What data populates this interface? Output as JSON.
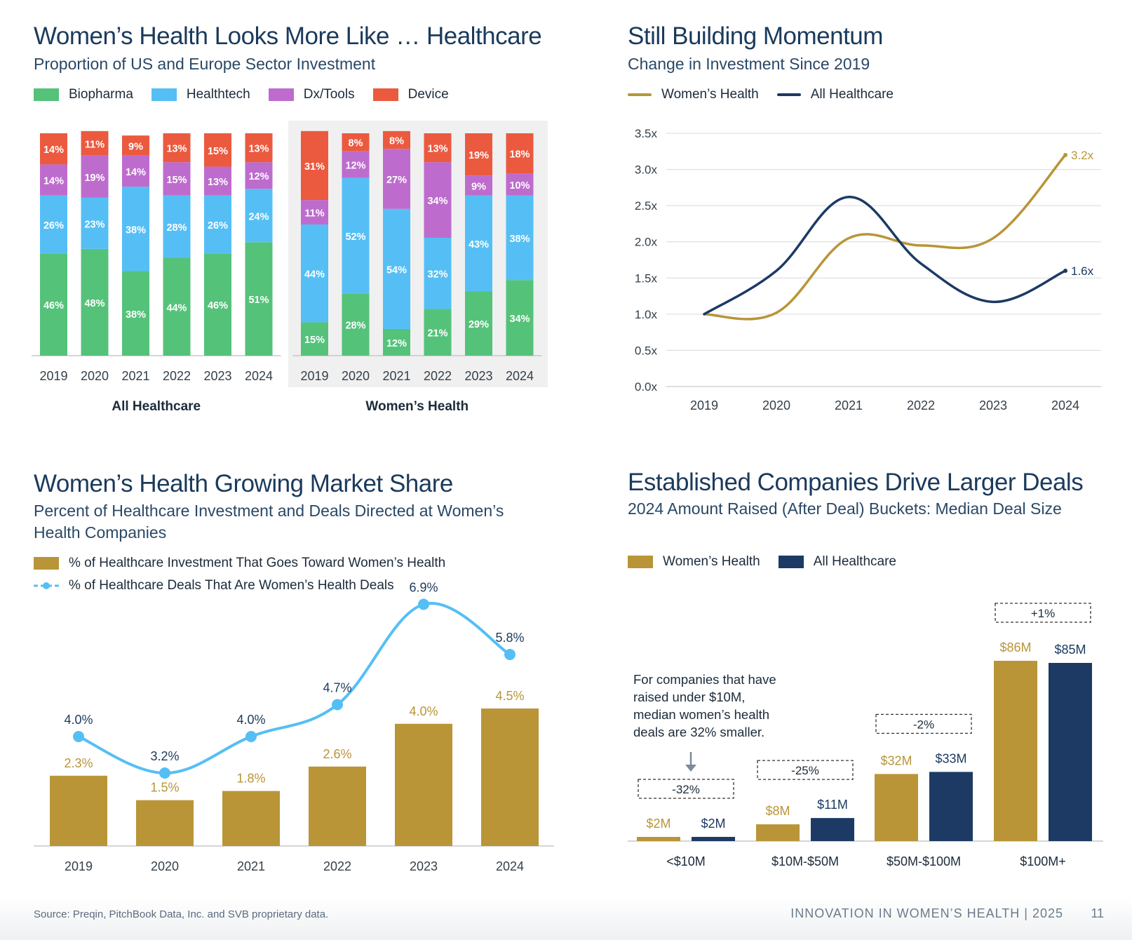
{
  "colors": {
    "biopharma": "#55c27a",
    "healthtech": "#55bff5",
    "dx_tools": "#bd6ccd",
    "device": "#eb5a3f",
    "womens_health": "#b99538",
    "all_healthcare": "#1c3a64",
    "deals_line": "#55bff5",
    "title": "#1b3a5c"
  },
  "panel1": {
    "title": "Women’s Health Looks More Like … Healthcare",
    "subtitle": "Proportion of US and Europe Sector Investment",
    "legend": [
      "Biopharma",
      "Healthtech",
      "Dx/Tools",
      "Device"
    ]
  },
  "panel2": {
    "title": "Still Building Momentum",
    "subtitle": "Change in Investment Since 2019",
    "legend": [
      "Women’s Health",
      "All Healthcare"
    ]
  },
  "panel3": {
    "title": "Women’s Health Growing Market Share",
    "subtitle_line1": "Percent of Healthcare Investment and Deals Directed at Women’s",
    "subtitle_line2": "Health Companies",
    "legend": [
      "% of Healthcare Investment That Goes Toward Women’s Health",
      "% of Healthcare Deals That Are Women’s Health Deals"
    ]
  },
  "panel4": {
    "title": "Established Companies Drive Larger Deals",
    "subtitle": "2024 Amount Raised (After Deal) Buckets: Median Deal Size",
    "legend": [
      "Women’s Health",
      "All Healthcare"
    ],
    "annotation": [
      "For companies that have",
      "raised under $10M,",
      "median women’s health",
      "deals are 32% smaller."
    ]
  },
  "footer": {
    "source": "Source: Preqin, PitchBook Data, Inc. and SVB proprietary data.",
    "report": "INNOVATION IN WOMEN’S HEALTH | 2025",
    "page": "11"
  },
  "chart_data": [
    {
      "type": "bar",
      "stacked": true,
      "percent": true,
      "group": "All Healthcare",
      "categories": [
        "2019",
        "2020",
        "2021",
        "2022",
        "2023",
        "2024"
      ],
      "series": [
        {
          "name": "Biopharma",
          "values": [
            46,
            48,
            38,
            44,
            46,
            51
          ]
        },
        {
          "name": "Healthtech",
          "values": [
            26,
            23,
            38,
            28,
            26,
            24
          ]
        },
        {
          "name": "Dx/Tools",
          "values": [
            14,
            19,
            14,
            15,
            13,
            12
          ]
        },
        {
          "name": "Device",
          "values": [
            14,
            11,
            9,
            13,
            15,
            13
          ]
        }
      ]
    },
    {
      "type": "bar",
      "stacked": true,
      "percent": true,
      "group": "Women’s Health",
      "categories": [
        "2019",
        "2020",
        "2021",
        "2022",
        "2023",
        "2024"
      ],
      "series": [
        {
          "name": "Biopharma",
          "values": [
            15,
            28,
            12,
            21,
            29,
            34
          ]
        },
        {
          "name": "Healthtech",
          "values": [
            44,
            52,
            54,
            32,
            43,
            38
          ]
        },
        {
          "name": "Dx/Tools",
          "values": [
            11,
            12,
            27,
            34,
            9,
            10
          ]
        },
        {
          "name": "Device",
          "values": [
            31,
            8,
            8,
            13,
            19,
            18
          ]
        }
      ]
    },
    {
      "type": "line",
      "x": [
        "2019",
        "2020",
        "2021",
        "2022",
        "2023",
        "2024"
      ],
      "series": [
        {
          "name": "Women’s Health",
          "values": [
            1.0,
            1.02,
            2.05,
            1.95,
            2.05,
            3.2
          ]
        },
        {
          "name": "All Healthcare",
          "values": [
            1.0,
            1.6,
            2.62,
            1.7,
            1.17,
            1.6
          ]
        }
      ],
      "end_labels": [
        "3.2x",
        "1.6x"
      ],
      "ylim": [
        0,
        3.5
      ],
      "yticks": [
        "0.0x",
        "0.5x",
        "1.0x",
        "1.5x",
        "2.0x",
        "2.5x",
        "3.0x",
        "3.5x"
      ],
      "grid": true
    },
    {
      "type": "bar",
      "categories": [
        "2019",
        "2020",
        "2021",
        "2022",
        "2023",
        "2024"
      ],
      "series": [
        {
          "name": "% of Healthcare Investment That Goes Toward Women’s Health",
          "values": [
            2.3,
            1.5,
            1.8,
            2.6,
            4.0,
            4.5
          ],
          "labels": [
            "2.3%",
            "1.5%",
            "1.8%",
            "2.6%",
            "4.0%",
            "4.5%"
          ]
        },
        {
          "name": "% of Healthcare Deals That Are Women’s Health Deals",
          "chart": "line",
          "values": [
            4.0,
            3.2,
            4.0,
            4.7,
            6.9,
            5.8
          ],
          "labels": [
            "4.0%",
            "3.2%",
            "4.0%",
            "4.7%",
            "6.9%",
            "5.8%"
          ]
        }
      ],
      "ylim": [
        0,
        8
      ]
    },
    {
      "type": "bar",
      "categories": [
        "<$10M",
        "$10M-$50M",
        "$50M-$100M",
        "$100M+"
      ],
      "series": [
        {
          "name": "Women’s Health",
          "values": [
            2,
            8,
            32,
            86
          ],
          "labels": [
            "$2M",
            "$8M",
            "$32M",
            "$86M"
          ]
        },
        {
          "name": "All Healthcare",
          "values": [
            2,
            11,
            33,
            85
          ],
          "labels": [
            "$2M",
            "$11M",
            "$33M",
            "$85M"
          ]
        }
      ],
      "differences": [
        "-32%",
        "-25%",
        "-2%",
        "+1%"
      ],
      "ylim": [
        0,
        100
      ]
    }
  ]
}
